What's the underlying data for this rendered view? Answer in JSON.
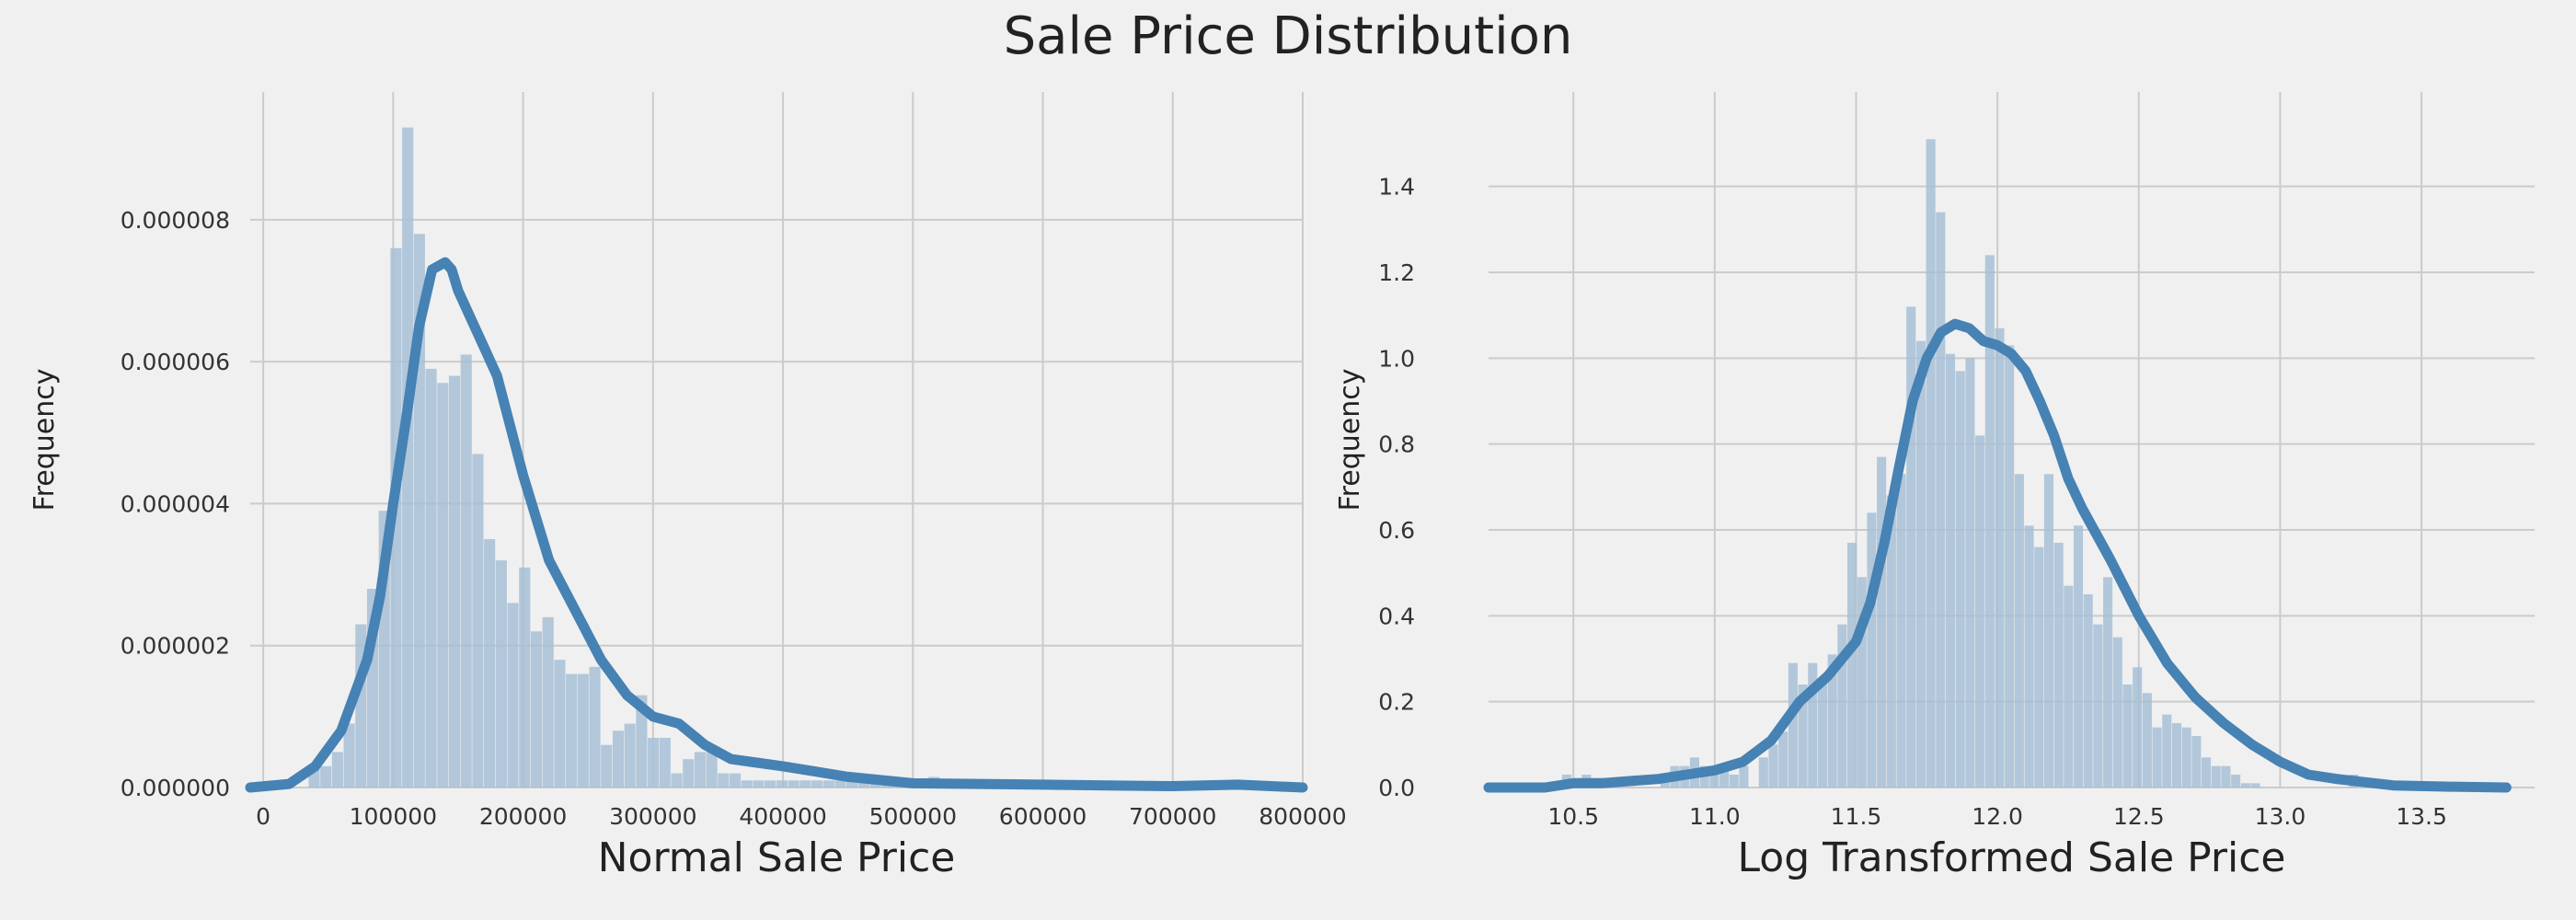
{
  "title": "Sale Price Distribution",
  "colors": {
    "background": "#f0f0f0",
    "grid": "#cbcbcb",
    "bar": "#a7bfd6",
    "kde": "#4682b4"
  },
  "chart_data": [
    {
      "type": "histogram",
      "xlabel": "Normal Sale Price",
      "ylabel": "Frequency",
      "xlim": [
        -10000,
        800000
      ],
      "ylim": [
        0,
        9.8e-06
      ],
      "grid": true,
      "xticks": [
        0,
        100000,
        200000,
        300000,
        400000,
        500000,
        600000,
        700000,
        800000
      ],
      "xtick_labels": [
        "0",
        "100000",
        "200000",
        "300000",
        "400000",
        "500000",
        "600000",
        "700000",
        "800000"
      ],
      "yticks": [
        0,
        2e-06,
        4e-06,
        6e-06,
        8e-06
      ],
      "ytick_labels": [
        "0.000000",
        "0.000002",
        "0.000004",
        "0.000006",
        "0.000008"
      ],
      "bin_start": 34900,
      "bin_width": 9000,
      "bar_heights": [
        3e-07,
        3e-07,
        5e-07,
        9e-07,
        2.3e-06,
        2.8e-06,
        3.9e-06,
        7.6e-06,
        9.3e-06,
        7.8e-06,
        5.9e-06,
        5.7e-06,
        5.8e-06,
        6.1e-06,
        4.7e-06,
        3.5e-06,
        3.2e-06,
        2.6e-06,
        3.1e-06,
        2.2e-06,
        2.4e-06,
        1.8e-06,
        1.6e-06,
        1.6e-06,
        1.7e-06,
        6e-07,
        8e-07,
        9e-07,
        1.3e-06,
        7e-07,
        7e-07,
        2e-07,
        4e-07,
        5e-07,
        5e-07,
        2e-07,
        2e-07,
        1e-07,
        1e-07,
        1e-07,
        1e-07,
        1e-07,
        1e-07,
        1e-07,
        1e-07,
        1e-07,
        1e-07,
        1e-07,
        1e-07,
        1e-07,
        1e-07,
        1e-07,
        1e-07,
        1.5e-07,
        5e-08,
        5e-08,
        5e-08,
        5e-08,
        5e-08,
        5e-08,
        5e-08,
        5e-08,
        5e-08,
        5e-08,
        5e-08,
        5e-08,
        5e-08,
        5e-08,
        5e-08,
        5e-08,
        5e-08,
        5e-08,
        5e-08,
        5e-08,
        5e-08,
        5e-08,
        5e-08,
        5e-08,
        5e-08,
        5e-08
      ],
      "kde_x": [
        -10000,
        20000,
        40000,
        60000,
        80000,
        90000,
        100000,
        110000,
        120000,
        130000,
        140000,
        145000,
        150000,
        160000,
        170000,
        180000,
        200000,
        220000,
        240000,
        260000,
        280000,
        300000,
        320000,
        340000,
        360000,
        380000,
        400000,
        450000,
        500000,
        550000,
        600000,
        650000,
        700000,
        750000,
        800000
      ],
      "kde_y": [
        0,
        5e-08,
        3e-07,
        8e-07,
        1.8e-06,
        2.7e-06,
        4e-06,
        5.2e-06,
        6.5e-06,
        7.3e-06,
        7.4e-06,
        7.3e-06,
        7e-06,
        6.6e-06,
        6.2e-06,
        5.8e-06,
        4.4e-06,
        3.2e-06,
        2.5e-06,
        1.8e-06,
        1.3e-06,
        1e-06,
        9e-07,
        6e-07,
        4e-07,
        3.5e-07,
        3e-07,
        1.5e-07,
        6e-08,
        5e-08,
        4e-08,
        3e-08,
        2e-08,
        4e-08,
        0.0
      ]
    },
    {
      "type": "histogram",
      "xlabel": "Log Transformed Sale Price",
      "ylabel": "Frequency",
      "xlim": [
        10.2,
        13.9
      ],
      "ylim": [
        0,
        1.62
      ],
      "grid": true,
      "xticks": [
        10.5,
        11.0,
        11.5,
        12.0,
        12.5,
        13.0,
        13.5
      ],
      "xtick_labels": [
        "10.5",
        "11.0",
        "11.5",
        "12.0",
        "12.5",
        "13.0",
        "13.5"
      ],
      "yticks": [
        0,
        0.2,
        0.4,
        0.6,
        0.8,
        1.0,
        1.2,
        1.4
      ],
      "ytick_labels": [
        "0.0",
        "0.2",
        "0.4",
        "0.6",
        "0.8",
        "1.0",
        "1.2",
        "1.4"
      ],
      "bin_start": 10.46,
      "bin_width": 0.0348,
      "bar_heights": [
        0.03,
        0.0,
        0.03,
        0.0,
        0.0,
        0.0,
        0.0,
        0.0,
        0.0,
        0.0,
        0.03,
        0.05,
        0.05,
        0.07,
        0.05,
        0.05,
        0.05,
        0.03,
        0.05,
        0.0,
        0.07,
        0.1,
        0.13,
        0.29,
        0.24,
        0.29,
        0.25,
        0.31,
        0.38,
        0.57,
        0.49,
        0.64,
        0.77,
        0.68,
        0.73,
        1.12,
        1.04,
        1.51,
        1.34,
        1.01,
        0.97,
        1.0,
        0.82,
        1.24,
        1.07,
        1.03,
        0.73,
        0.61,
        0.56,
        0.73,
        0.57,
        0.47,
        0.61,
        0.45,
        0.38,
        0.49,
        0.35,
        0.24,
        0.28,
        0.22,
        0.14,
        0.17,
        0.15,
        0.14,
        0.12,
        0.07,
        0.05,
        0.05,
        0.03,
        0.01,
        0.01,
        0.0,
        0.0,
        0.0,
        0.0,
        0.0,
        0.0,
        0.0,
        0.0,
        0.0,
        0.03
      ],
      "kde_x": [
        10.2,
        10.4,
        10.5,
        10.6,
        10.8,
        10.9,
        11.0,
        11.1,
        11.2,
        11.3,
        11.4,
        11.5,
        11.55,
        11.6,
        11.65,
        11.7,
        11.75,
        11.8,
        11.85,
        11.9,
        11.95,
        12.0,
        12.05,
        12.1,
        12.15,
        12.2,
        12.25,
        12.3,
        12.35,
        12.4,
        12.5,
        12.6,
        12.7,
        12.8,
        12.9,
        13.0,
        13.1,
        13.2,
        13.4,
        13.6,
        13.8
      ],
      "kde_y": [
        0.0,
        0.0,
        0.01,
        0.01,
        0.02,
        0.03,
        0.04,
        0.06,
        0.11,
        0.2,
        0.26,
        0.34,
        0.43,
        0.57,
        0.74,
        0.9,
        1.0,
        1.06,
        1.08,
        1.07,
        1.04,
        1.03,
        1.01,
        0.97,
        0.9,
        0.82,
        0.72,
        0.65,
        0.59,
        0.53,
        0.4,
        0.29,
        0.21,
        0.15,
        0.1,
        0.06,
        0.03,
        0.02,
        0.005,
        0.002,
        0.0
      ]
    }
  ]
}
